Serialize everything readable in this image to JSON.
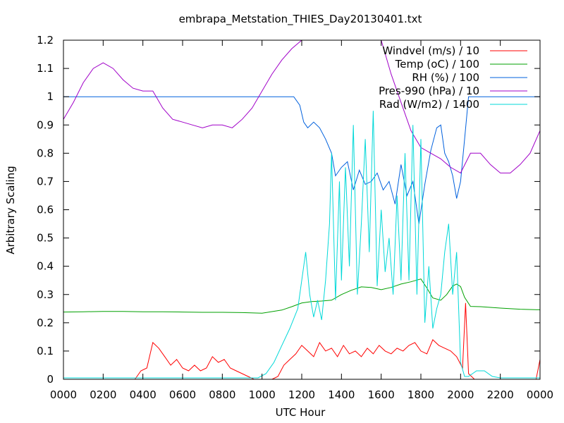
{
  "chart_data": {
    "type": "line",
    "title": "embrapa_Metstation_THIES_Day20130401.txt",
    "xlabel": "UTC Hour",
    "ylabel": "Arbitrary Scaling",
    "xlim": [
      0,
      24
    ],
    "ylim": [
      0,
      1.2
    ],
    "grid": false,
    "legend_position": "top-right",
    "x_tick_labels": [
      "0000",
      "0200",
      "0400",
      "0600",
      "0800",
      "1000",
      "1200",
      "1400",
      "1600",
      "1800",
      "2000",
      "2200",
      "0000"
    ],
    "y_tick_labels": [
      "0",
      "0.1",
      "0.2",
      "0.3",
      "0.4",
      "0.5",
      "0.6",
      "0.7",
      "0.8",
      "0.9",
      "1",
      "1.1",
      "1.2"
    ],
    "series": [
      {
        "name": "Windvel (m/s) / 10",
        "color": "#ff0000",
        "x": [
          0,
          3.6,
          3.9,
          4.2,
          4.5,
          4.8,
          5.1,
          5.4,
          5.7,
          6.0,
          6.3,
          6.6,
          6.9,
          7.2,
          7.5,
          7.8,
          8.1,
          8.4,
          8.7,
          9.0,
          9.3,
          9.6,
          9.9,
          10.2,
          10.5,
          10.8,
          11.1,
          11.4,
          11.7,
          12.0,
          12.3,
          12.6,
          12.9,
          13.2,
          13.5,
          13.8,
          14.1,
          14.4,
          14.7,
          15.0,
          15.3,
          15.6,
          15.9,
          16.2,
          16.5,
          16.8,
          17.1,
          17.4,
          17.7,
          18.0,
          18.3,
          18.6,
          18.9,
          19.2,
          19.5,
          19.8,
          20.1,
          20.25,
          20.4,
          20.7,
          21.0,
          22.0,
          23.0,
          23.8,
          24.0
        ],
        "y": [
          0,
          0,
          0.03,
          0.04,
          0.13,
          0.11,
          0.08,
          0.05,
          0.07,
          0.04,
          0.03,
          0.05,
          0.03,
          0.04,
          0.08,
          0.06,
          0.07,
          0.04,
          0.03,
          0.02,
          0.01,
          0,
          0,
          0,
          0,
          0.01,
          0.05,
          0.07,
          0.09,
          0.12,
          0.1,
          0.08,
          0.13,
          0.1,
          0.11,
          0.08,
          0.12,
          0.09,
          0.1,
          0.08,
          0.11,
          0.09,
          0.12,
          0.1,
          0.09,
          0.11,
          0.1,
          0.12,
          0.13,
          0.1,
          0.09,
          0.14,
          0.12,
          0.11,
          0.1,
          0.08,
          0.04,
          0.27,
          0.02,
          0,
          0,
          0,
          0,
          0,
          0.07
        ]
      },
      {
        "name": "Temp (oC) / 100",
        "color": "#00a000",
        "x": [
          0,
          1,
          2,
          3,
          4,
          5,
          6,
          7,
          8,
          9,
          10,
          11,
          11.5,
          12,
          12.5,
          13,
          13.5,
          14,
          14.5,
          15,
          15.5,
          16,
          16.5,
          17,
          17.5,
          18,
          18.3,
          18.6,
          19,
          19.3,
          19.6,
          19.8,
          20,
          20.2,
          20.5,
          21,
          22,
          23,
          24
        ],
        "y": [
          0.238,
          0.239,
          0.24,
          0.24,
          0.239,
          0.239,
          0.238,
          0.237,
          0.237,
          0.236,
          0.234,
          0.245,
          0.257,
          0.27,
          0.275,
          0.277,
          0.28,
          0.3,
          0.315,
          0.327,
          0.325,
          0.317,
          0.325,
          0.337,
          0.345,
          0.355,
          0.323,
          0.288,
          0.28,
          0.3,
          0.33,
          0.337,
          0.328,
          0.29,
          0.258,
          0.257,
          0.252,
          0.248,
          0.246
        ]
      },
      {
        "name": "RH (%) / 100",
        "color": "#0060dd",
        "x": [
          0,
          11.6,
          11.9,
          12.1,
          12.3,
          12.6,
          12.9,
          13.2,
          13.5,
          13.7,
          14.0,
          14.3,
          14.6,
          14.9,
          15.2,
          15.5,
          15.8,
          16.1,
          16.4,
          16.7,
          17.0,
          17.3,
          17.6,
          17.9,
          18.2,
          18.5,
          18.8,
          19.0,
          19.2,
          19.4,
          19.6,
          19.8,
          20.0,
          20.2,
          20.4,
          24
        ],
        "y": [
          1.0,
          1.0,
          0.97,
          0.91,
          0.89,
          0.91,
          0.89,
          0.85,
          0.8,
          0.72,
          0.75,
          0.77,
          0.67,
          0.74,
          0.69,
          0.7,
          0.73,
          0.67,
          0.7,
          0.62,
          0.76,
          0.65,
          0.7,
          0.55,
          0.69,
          0.81,
          0.89,
          0.9,
          0.8,
          0.77,
          0.72,
          0.64,
          0.7,
          0.85,
          1.0,
          1.0
        ]
      },
      {
        "name": "Pres-990 (hPa) / 10",
        "color": "#a000c8",
        "x": [
          0,
          0.5,
          1,
          1.5,
          2,
          2.5,
          3,
          3.5,
          4,
          4.5,
          5,
          5.5,
          6,
          6.5,
          7,
          7.5,
          8,
          8.5,
          9,
          9.5,
          10,
          10.5,
          11,
          11.5,
          12,
          12.3,
          16,
          16.5,
          17,
          17.5,
          18,
          18.5,
          19,
          19.5,
          20,
          20.5,
          21,
          21.5,
          22,
          22.5,
          23,
          23.5,
          24
        ],
        "y": [
          0.92,
          0.98,
          1.05,
          1.1,
          1.12,
          1.1,
          1.06,
          1.03,
          1.02,
          1.02,
          0.96,
          0.92,
          0.91,
          0.9,
          0.89,
          0.9,
          0.9,
          0.89,
          0.92,
          0.96,
          1.02,
          1.08,
          1.13,
          1.17,
          1.2,
          1.2,
          1.2,
          1.08,
          0.98,
          0.88,
          0.82,
          0.8,
          0.78,
          0.75,
          0.73,
          0.8,
          0.8,
          0.76,
          0.73,
          0.73,
          0.76,
          0.8,
          0.88
        ]
      },
      {
        "name": "Rad (W/m2) / 1400",
        "color": "#00d8d8",
        "x": [
          0,
          9.8,
          10.2,
          10.6,
          11.0,
          11.4,
          11.8,
          12.0,
          12.2,
          12.4,
          12.6,
          12.8,
          13.0,
          13.2,
          13.4,
          13.5,
          13.7,
          13.9,
          14.0,
          14.2,
          14.4,
          14.6,
          14.8,
          15.0,
          15.2,
          15.4,
          15.6,
          15.8,
          16.0,
          16.2,
          16.4,
          16.6,
          16.8,
          17.0,
          17.2,
          17.4,
          17.6,
          17.8,
          18.0,
          18.2,
          18.4,
          18.6,
          18.8,
          19.0,
          19.2,
          19.4,
          19.6,
          19.8,
          20.0,
          20.2,
          20.4,
          20.8,
          21.2,
          21.6,
          22.0,
          24
        ],
        "y": [
          0.005,
          0.005,
          0.02,
          0.06,
          0.12,
          0.18,
          0.25,
          0.35,
          0.45,
          0.3,
          0.22,
          0.28,
          0.21,
          0.35,
          0.55,
          0.8,
          0.28,
          0.7,
          0.35,
          0.75,
          0.4,
          0.9,
          0.3,
          0.55,
          0.85,
          0.45,
          0.95,
          0.33,
          0.6,
          0.38,
          0.5,
          0.3,
          0.65,
          0.35,
          0.8,
          0.35,
          0.9,
          0.3,
          0.85,
          0.2,
          0.4,
          0.18,
          0.25,
          0.3,
          0.45,
          0.55,
          0.3,
          0.45,
          0.06,
          0.01,
          0.01,
          0.03,
          0.03,
          0.01,
          0.005,
          0.005
        ]
      }
    ]
  }
}
